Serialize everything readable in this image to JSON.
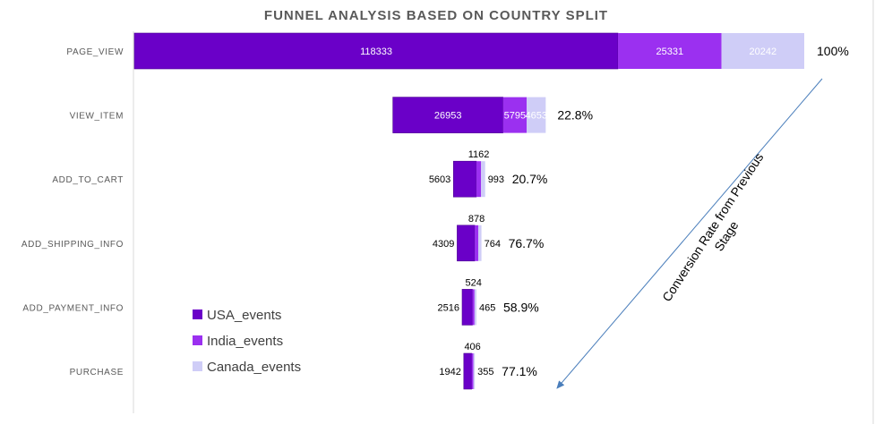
{
  "chart_data": {
    "type": "bar",
    "orientation": "horizontal-funnel",
    "title": "FUNNEL ANALYSIS BASED ON COUNTRY SPLIT",
    "categories": [
      "PAGE_VIEW",
      "VIEW_ITEM",
      "ADD_TO_CART",
      "ADD_SHIPPING_INFO",
      "ADD_PAYMENT_INFO",
      "PURCHASE"
    ],
    "series": [
      {
        "name": "USA_events",
        "values": [
          118333,
          26953,
          5603,
          4309,
          2516,
          1942
        ],
        "color": "#6a00c8"
      },
      {
        "name": "India_events",
        "values": [
          25331,
          5795,
          1162,
          878,
          524,
          406
        ],
        "color": "#9b30f0"
      },
      {
        "name": "Canada_events",
        "values": [
          20242,
          4653,
          993,
          764,
          465,
          355
        ],
        "color": "#cfcdf7"
      }
    ],
    "conversion_rates": [
      "100%",
      "22.8%",
      "20.7%",
      "76.7%",
      "58.9%",
      "77.1%"
    ],
    "annotation": "Conversion Rate from Previous Stage",
    "legend_position": "bottom-left",
    "grid": false
  }
}
